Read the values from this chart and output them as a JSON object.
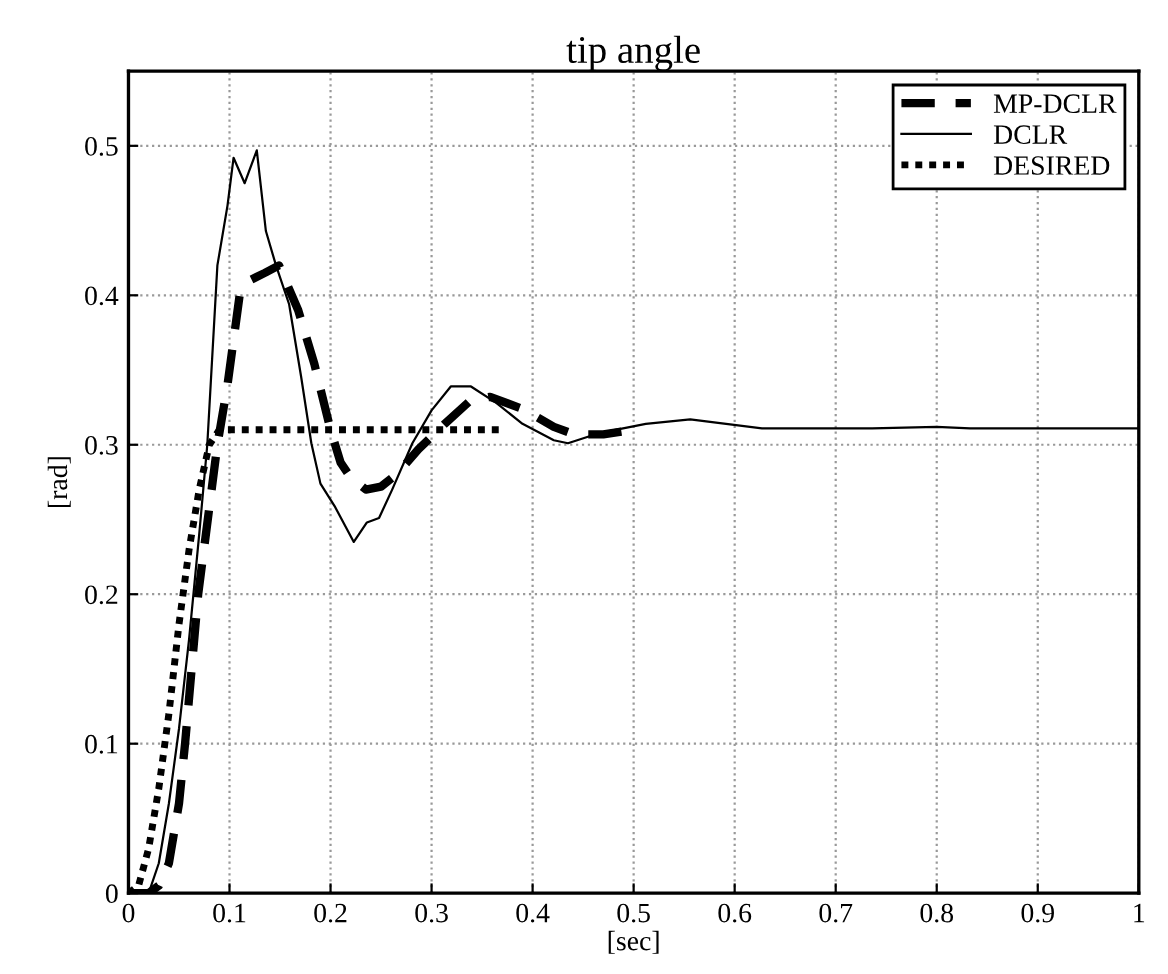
{
  "chart_data": {
    "type": "line",
    "title": "tip angle",
    "xlabel": "[sec]",
    "ylabel": "[rad]",
    "xlim": [
      0,
      1
    ],
    "ylim": [
      0,
      0.55
    ],
    "xticks": [
      0,
      0.1,
      0.2,
      0.3,
      0.4,
      0.5,
      0.6,
      0.7,
      0.8,
      0.9,
      1
    ],
    "yticks": [
      0,
      0.1,
      0.2,
      0.3,
      0.4,
      0.5
    ],
    "grid": true,
    "legend": "top right",
    "marker": "none",
    "series": [
      {
        "name": "MP-DCLR",
        "color": "#000000",
        "line_style": "dashed",
        "x": [
          0,
          0.02,
          0.03,
          0.04,
          0.05,
          0.056,
          0.069,
          0.088,
          0.098,
          0.11,
          0.12,
          0.135,
          0.149,
          0.168,
          0.184,
          0.2,
          0.21,
          0.22,
          0.235,
          0.25,
          0.265,
          0.287,
          0.313,
          0.339,
          0.358,
          0.39,
          0.421,
          0.441,
          0.47,
          0.5
        ],
        "values": [
          0,
          0,
          0.005,
          0.02,
          0.06,
          0.1,
          0.2,
          0.3,
          0.34,
          0.4,
          0.41,
          0.415,
          0.42,
          0.39,
          0.354,
          0.31,
          0.288,
          0.278,
          0.27,
          0.272,
          0.28,
          0.297,
          0.314,
          0.33,
          0.332,
          0.324,
          0.312,
          0.307,
          0.307,
          0.31
        ]
      },
      {
        "name": "DCLR",
        "color": "#000000",
        "line_style": "solid",
        "x": [
          0,
          0.02,
          0.03,
          0.04,
          0.05,
          0.06,
          0.07,
          0.078,
          0.088,
          0.098,
          0.104,
          0.115,
          0.127,
          0.136,
          0.146,
          0.159,
          0.171,
          0.181,
          0.19,
          0.204,
          0.223,
          0.236,
          0.248,
          0.261,
          0.281,
          0.3,
          0.319,
          0.339,
          0.364,
          0.39,
          0.421,
          0.435,
          0.467,
          0.512,
          0.556,
          0.627,
          0.736,
          0.8,
          0.833,
          1
        ],
        "values": [
          0,
          0,
          0.02,
          0.06,
          0.11,
          0.17,
          0.24,
          0.3,
          0.42,
          0.46,
          0.492,
          0.475,
          0.497,
          0.443,
          0.42,
          0.394,
          0.345,
          0.301,
          0.274,
          0.259,
          0.235,
          0.248,
          0.251,
          0.27,
          0.301,
          0.323,
          0.339,
          0.339,
          0.328,
          0.314,
          0.303,
          0.301,
          0.308,
          0.314,
          0.317,
          0.311,
          0.311,
          0.312,
          0.311,
          0.311
        ]
      },
      {
        "name": "DESIRED",
        "color": "#000000",
        "line_style": "dotted",
        "x": [
          0,
          0.01,
          0.02,
          0.03,
          0.04,
          0.05,
          0.06,
          0.07,
          0.08,
          0.09,
          0.37
        ],
        "values": [
          0,
          0.005,
          0.03,
          0.07,
          0.12,
          0.18,
          0.23,
          0.27,
          0.3,
          0.31,
          0.31
        ]
      }
    ]
  }
}
